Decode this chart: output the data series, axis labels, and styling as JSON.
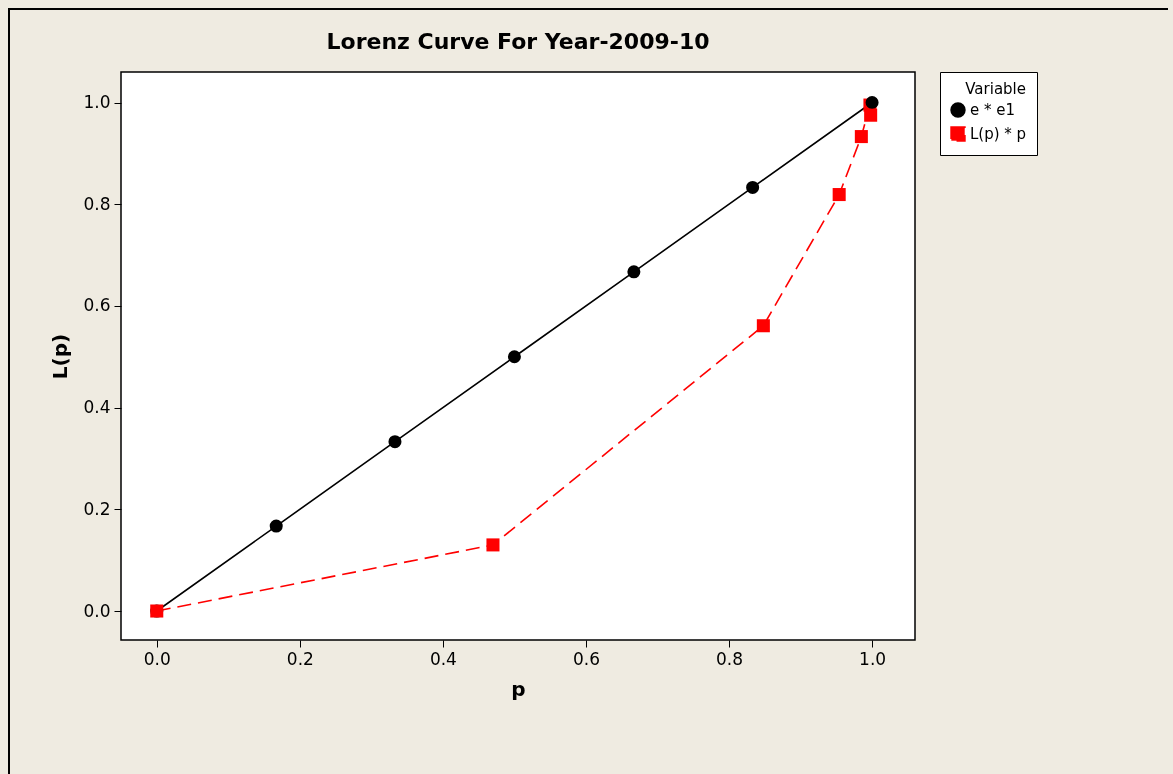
{
  "chart_data": {
    "type": "line",
    "title": "Lorenz Curve For Year-2009-10",
    "xlabel": "p",
    "ylabel": "L(p)",
    "legend_title": "Variable",
    "legend": "top right",
    "grid": false,
    "xlim": [
      -0.05,
      1.06
    ],
    "ylim": [
      -0.057,
      1.06
    ],
    "xticks": [
      {
        "value": 0,
        "label": "0.0"
      },
      0.2,
      0.4,
      0.6,
      0.8,
      {
        "value": 1,
        "label": "1.0"
      }
    ],
    "yticks": [
      {
        "value": 0,
        "label": "0.0"
      },
      0.2,
      0.4,
      0.6,
      0.8,
      {
        "value": 1,
        "label": "1.0"
      }
    ],
    "series": [
      {
        "name": "e * e1",
        "color": "#000000",
        "marker": "circle",
        "line_style": "solid",
        "x": [
          0,
          0.167,
          0.333,
          0.5,
          0.667,
          0.833,
          1
        ],
        "values": [
          0,
          0.167,
          0.333,
          0.5,
          0.667,
          0.833,
          1
        ]
      },
      {
        "name": "L(p) * p",
        "color": "#ff0000",
        "marker": "square",
        "line_style": "dashed",
        "x": [
          0,
          0.47,
          0.848,
          0.954,
          0.985,
          0.997,
          0.998
        ],
        "values": [
          0,
          0.13,
          0.561,
          0.819,
          0.933,
          0.995,
          0.975
        ]
      }
    ]
  }
}
